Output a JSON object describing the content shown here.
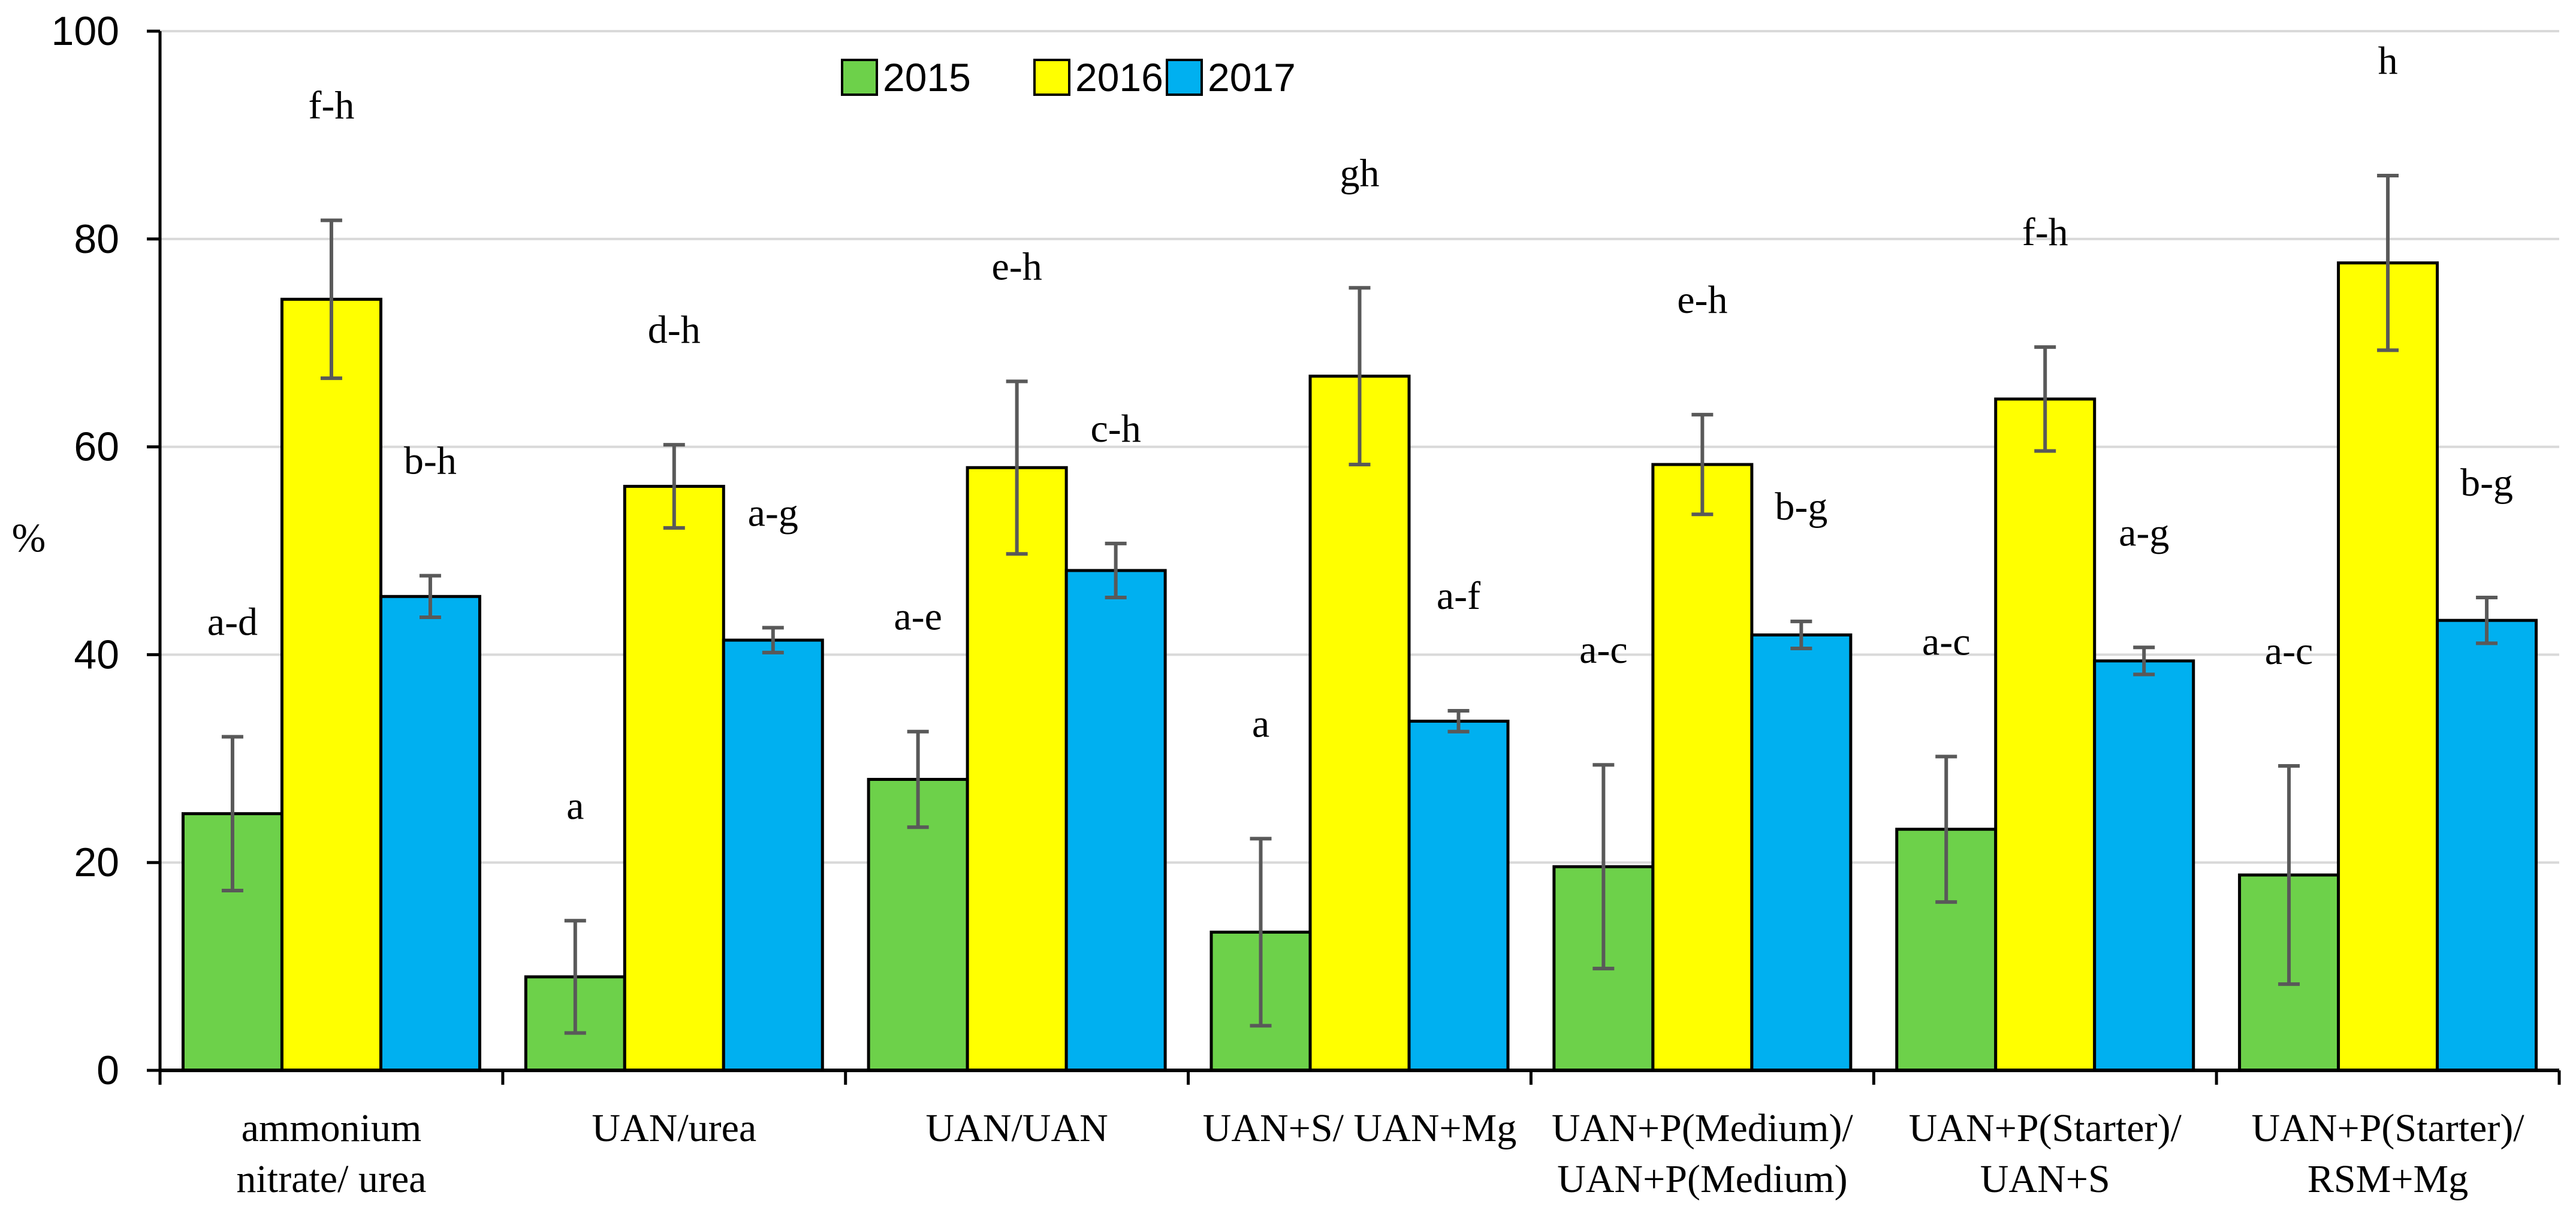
{
  "chart_data": {
    "type": "bar",
    "title": "",
    "xlabel": "",
    "ylabel": "%",
    "ylim": [
      0,
      100
    ],
    "yticks": [
      "0",
      "20",
      "40",
      "60",
      "80",
      "100"
    ],
    "grid": true,
    "legend_position": "top-center",
    "categories": [
      [
        "ammonium",
        "nitrate/ urea"
      ],
      [
        "UAN/urea"
      ],
      [
        "UAN/UAN"
      ],
      [
        "UAN+S/ UAN+Mg"
      ],
      [
        "UAN+P(Medium)/",
        "UAN+P(Medium)"
      ],
      [
        "UAN+P(Starter)/",
        "UAN+S"
      ],
      [
        "UAN+P(Starter)/",
        "RSM+Mg"
      ]
    ],
    "series": [
      {
        "name": "2015",
        "color": "#6dd14a",
        "values": [
          24.7,
          9.0,
          28.0,
          13.3,
          19.6,
          23.2,
          18.8
        ],
        "errors": [
          7.4,
          5.4,
          4.6,
          9.0,
          9.8,
          7.0,
          10.5
        ],
        "letters": [
          "a-d",
          "a",
          "a-e",
          "a",
          "a-c",
          "a-c",
          "a-c"
        ]
      },
      {
        "name": "2016",
        "color": "#ffff00",
        "values": [
          74.2,
          56.2,
          58.0,
          66.8,
          58.3,
          64.6,
          77.7
        ],
        "errors": [
          7.6,
          4.0,
          8.3,
          8.5,
          4.8,
          5.0,
          8.4
        ],
        "letters": [
          "f-h",
          "d-h",
          "e-h",
          "gh",
          "e-h",
          "f-h",
          "h"
        ]
      },
      {
        "name": "2017",
        "color": "#00b0f0",
        "values": [
          45.6,
          41.4,
          48.1,
          33.6,
          41.9,
          39.4,
          43.3
        ],
        "errors": [
          2.0,
          1.2,
          2.6,
          1.0,
          1.3,
          1.3,
          2.2
        ],
        "letters": [
          "b-h",
          "a-g",
          "c-h",
          "a-f",
          "b-g",
          "a-g",
          "b-g"
        ]
      }
    ]
  }
}
